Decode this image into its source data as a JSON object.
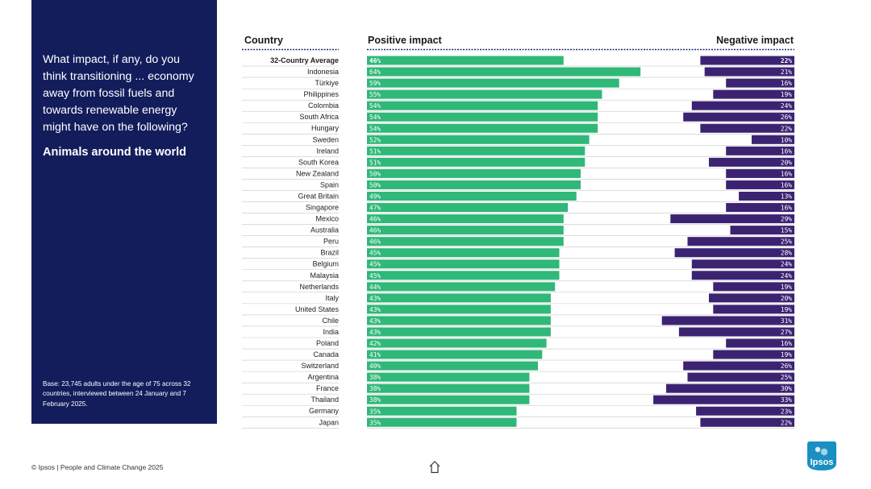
{
  "sidebar": {
    "question": "What impact, if any, do you think transitioning ... economy away from fossil fuels and towards renewable energy might have on the following?",
    "subtitle": "Animals around the world",
    "base_note": "Base: 23,745 adults under the age of 75 across 32 countries, interviewed between 24 January and 7 February 2025."
  },
  "headers": {
    "country": "Country",
    "positive": "Positive impact",
    "negative": "Negative impact"
  },
  "footer": {
    "text": "© Ipsos | People and Climate Change 2025",
    "logo_text": "Ipsos"
  },
  "colors": {
    "positive": "#2fb878",
    "negative": "#3c2372",
    "sidebar": "#131d5c",
    "logo": "#1a8fc2"
  },
  "icons": {
    "home": "home-icon"
  },
  "chart_data": {
    "type": "bar",
    "orientation": "horizontal-diverging",
    "categories": [
      "32-Country Average",
      "Indonesia",
      "Türkiye",
      "Philippines",
      "Colombia",
      "South Africa",
      "Hungary",
      "Sweden",
      "Ireland",
      "South Korea",
      "New Zealand",
      "Spain",
      "Great Britain",
      "Singapore",
      "Mexico",
      "Australia",
      "Peru",
      "Brazil",
      "Belgium",
      "Malaysia",
      "Netherlands",
      "Italy",
      "United States",
      "Chile",
      "India",
      "Poland",
      "Canada",
      "Switzerland",
      "Argentina",
      "France",
      "Thailand",
      "Germany",
      "Japan"
    ],
    "series": [
      {
        "name": "Positive impact",
        "values": [
          46,
          64,
          59,
          55,
          54,
          54,
          54,
          52,
          51,
          51,
          50,
          50,
          49,
          47,
          46,
          46,
          46,
          45,
          45,
          45,
          44,
          43,
          43,
          43,
          43,
          42,
          41,
          40,
          38,
          38,
          38,
          35,
          35
        ]
      },
      {
        "name": "Negative impact",
        "values": [
          22,
          21,
          16,
          19,
          24,
          26,
          22,
          10,
          16,
          20,
          16,
          16,
          13,
          16,
          29,
          15,
          25,
          28,
          24,
          24,
          19,
          20,
          19,
          31,
          27,
          16,
          19,
          26,
          25,
          30,
          33,
          23,
          22
        ]
      }
    ],
    "unit": "%",
    "xlim": [
      0,
      100
    ],
    "legend": "top"
  }
}
